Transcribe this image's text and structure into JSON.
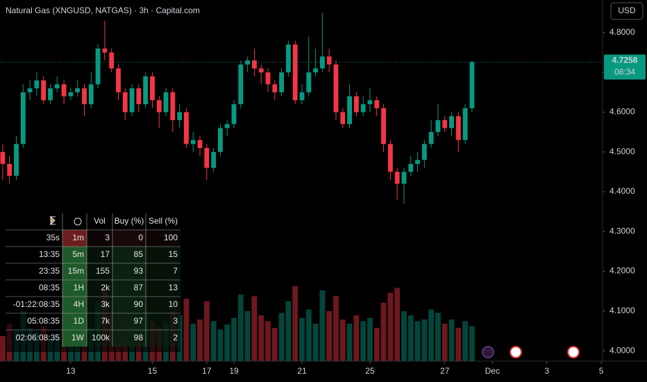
{
  "header": {
    "title": "Natural Gas (XNGUSD, NATGAS) · 3h · Capital.com",
    "currency": "USD",
    "countdown": "08:34"
  },
  "chart_data": {
    "type": "candlestick",
    "x": [
      0,
      1,
      2,
      3,
      4,
      5,
      6,
      7,
      8,
      9,
      10,
      11,
      12,
      13,
      14,
      15,
      16,
      17,
      18,
      19,
      20,
      21,
      22,
      23,
      24,
      25,
      26,
      27,
      28,
      29,
      30,
      31,
      32,
      33,
      34,
      35,
      36,
      37,
      38,
      39,
      40,
      41,
      42,
      43,
      44,
      45,
      46,
      47,
      48,
      49,
      50,
      51,
      52,
      53,
      54,
      55,
      56,
      57,
      58,
      59,
      60,
      61,
      62,
      63,
      64,
      65,
      66,
      67,
      68,
      69
    ],
    "open": [
      4.5,
      4.47,
      4.44,
      4.52,
      4.65,
      4.66,
      4.68,
      4.63,
      4.66,
      4.67,
      4.64,
      4.65,
      4.66,
      4.62,
      4.67,
      4.76,
      4.75,
      4.71,
      4.65,
      4.6,
      4.66,
      4.62,
      4.69,
      4.63,
      4.6,
      4.65,
      4.58,
      4.6,
      4.52,
      4.53,
      4.51,
      4.46,
      4.5,
      4.56,
      4.57,
      4.62,
      4.72,
      4.73,
      4.71,
      4.7,
      4.67,
      4.65,
      4.7,
      4.77,
      4.63,
      4.65,
      4.7,
      4.71,
      4.74,
      4.72,
      4.6,
      4.57,
      4.64,
      4.6,
      4.62,
      4.63,
      4.61,
      4.52,
      4.45,
      4.42,
      4.45,
      4.47,
      4.48,
      4.52,
      4.55,
      4.58,
      4.56,
      4.59,
      4.53,
      4.61
    ],
    "high": [
      4.52,
      4.49,
      4.54,
      4.67,
      4.68,
      4.7,
      4.69,
      4.67,
      4.69,
      4.68,
      4.66,
      4.68,
      4.67,
      4.7,
      4.77,
      4.83,
      4.76,
      4.72,
      4.66,
      4.67,
      4.67,
      4.7,
      4.7,
      4.64,
      4.66,
      4.66,
      4.62,
      4.61,
      4.55,
      4.54,
      4.52,
      4.51,
      4.57,
      4.58,
      4.63,
      4.73,
      4.74,
      4.76,
      4.72,
      4.71,
      4.68,
      4.71,
      4.78,
      4.78,
      4.67,
      4.79,
      4.76,
      4.85,
      4.76,
      4.73,
      4.61,
      4.67,
      4.65,
      4.64,
      4.66,
      4.64,
      4.62,
      4.53,
      4.46,
      4.46,
      4.49,
      4.5,
      4.53,
      4.58,
      4.62,
      4.59,
      4.6,
      4.6,
      4.62,
      4.73
    ],
    "low": [
      4.43,
      4.42,
      4.43,
      4.51,
      4.63,
      4.64,
      4.62,
      4.62,
      4.65,
      4.62,
      4.63,
      4.64,
      4.59,
      4.61,
      4.66,
      4.73,
      4.7,
      4.63,
      4.58,
      4.59,
      4.6,
      4.61,
      4.61,
      4.56,
      4.59,
      4.55,
      4.56,
      4.51,
      4.5,
      4.49,
      4.43,
      4.45,
      4.49,
      4.54,
      4.56,
      4.61,
      4.7,
      4.69,
      4.67,
      4.65,
      4.63,
      4.64,
      4.69,
      4.62,
      4.62,
      4.64,
      4.69,
      4.7,
      4.7,
      4.58,
      4.56,
      4.56,
      4.59,
      4.59,
      4.6,
      4.59,
      4.5,
      4.43,
      4.38,
      4.37,
      4.44,
      4.45,
      4.46,
      4.51,
      4.54,
      4.55,
      4.54,
      4.5,
      4.52,
      4.6
    ],
    "close": [
      4.47,
      4.44,
      4.52,
      4.65,
      4.66,
      4.68,
      4.63,
      4.66,
      4.67,
      4.64,
      4.65,
      4.66,
      4.62,
      4.67,
      4.76,
      4.75,
      4.71,
      4.65,
      4.6,
      4.66,
      4.62,
      4.69,
      4.63,
      4.6,
      4.65,
      4.58,
      4.6,
      4.52,
      4.53,
      4.51,
      4.46,
      4.5,
      4.56,
      4.57,
      4.62,
      4.72,
      4.73,
      4.71,
      4.7,
      4.67,
      4.65,
      4.7,
      4.77,
      4.63,
      4.65,
      4.7,
      4.71,
      4.74,
      4.72,
      4.6,
      4.57,
      4.64,
      4.6,
      4.62,
      4.63,
      4.61,
      4.52,
      4.45,
      4.42,
      4.45,
      4.47,
      4.48,
      4.52,
      4.55,
      4.58,
      4.56,
      4.59,
      4.53,
      4.61,
      4.7258
    ],
    "volume": [
      30,
      45,
      38,
      60,
      40,
      35,
      42,
      28,
      33,
      36,
      30,
      25,
      48,
      40,
      70,
      85,
      55,
      62,
      50,
      45,
      52,
      58,
      48,
      40,
      46,
      60,
      55,
      75,
      45,
      50,
      72,
      48,
      38,
      44,
      52,
      80,
      60,
      78,
      55,
      48,
      40,
      58,
      72,
      90,
      52,
      62,
      45,
      85,
      60,
      78,
      50,
      45,
      55,
      48,
      52,
      40,
      70,
      82,
      88,
      60,
      55,
      48,
      50,
      62,
      58,
      45,
      50,
      40,
      48,
      42
    ],
    "vlim": [
      0,
      100
    ],
    "up_color": "#089981",
    "down_color": "#f23645",
    "xlim": [
      -0.4,
      88.2
    ],
    "ylim": [
      3.974,
      4.882
    ],
    "xticks": [
      {
        "value": 10,
        "label": "13"
      },
      {
        "value": 22,
        "label": "15"
      },
      {
        "value": 30,
        "label": "17"
      },
      {
        "value": 34,
        "label": "19"
      },
      {
        "value": 44,
        "label": "21"
      },
      {
        "value": 54,
        "label": "25"
      },
      {
        "value": 65,
        "label": "27"
      },
      {
        "value": 72,
        "label": "Dec"
      },
      {
        "value": 80,
        "label": "3"
      },
      {
        "value": 88,
        "label": "5"
      }
    ],
    "yticks": [
      {
        "value": 4.0,
        "label": "4.0000"
      },
      {
        "value": 4.1,
        "label": "4.1000"
      },
      {
        "value": 4.2,
        "label": "4.2000"
      },
      {
        "value": 4.3,
        "label": "4.3000"
      },
      {
        "value": 4.4,
        "label": "4.4000"
      },
      {
        "value": 4.5,
        "label": "4.5000"
      },
      {
        "value": 4.6,
        "label": "4.6000"
      },
      {
        "value": 4.7,
        "label": "4.7000"
      },
      {
        "value": 4.8,
        "label": "4.8000"
      }
    ]
  },
  "table": {
    "headers": [
      "Vol",
      "Buy (%)",
      "Sell (%)"
    ],
    "rows": [
      [
        "35s",
        "1m",
        "3",
        "0",
        "100"
      ],
      [
        "13:35",
        "5m",
        "17",
        "85",
        "15"
      ],
      [
        "23:35",
        "15m",
        "155",
        "93",
        "7"
      ],
      [
        "08:35",
        "1H",
        "2k",
        "87",
        "13"
      ],
      [
        "-01:22:08:35",
        "4H",
        "3k",
        "90",
        "10"
      ],
      [
        "05:08:35",
        "1D",
        "7k",
        "97",
        "3"
      ],
      [
        "02:06:08:35",
        "1W",
        "100k",
        "98",
        "2"
      ]
    ]
  }
}
